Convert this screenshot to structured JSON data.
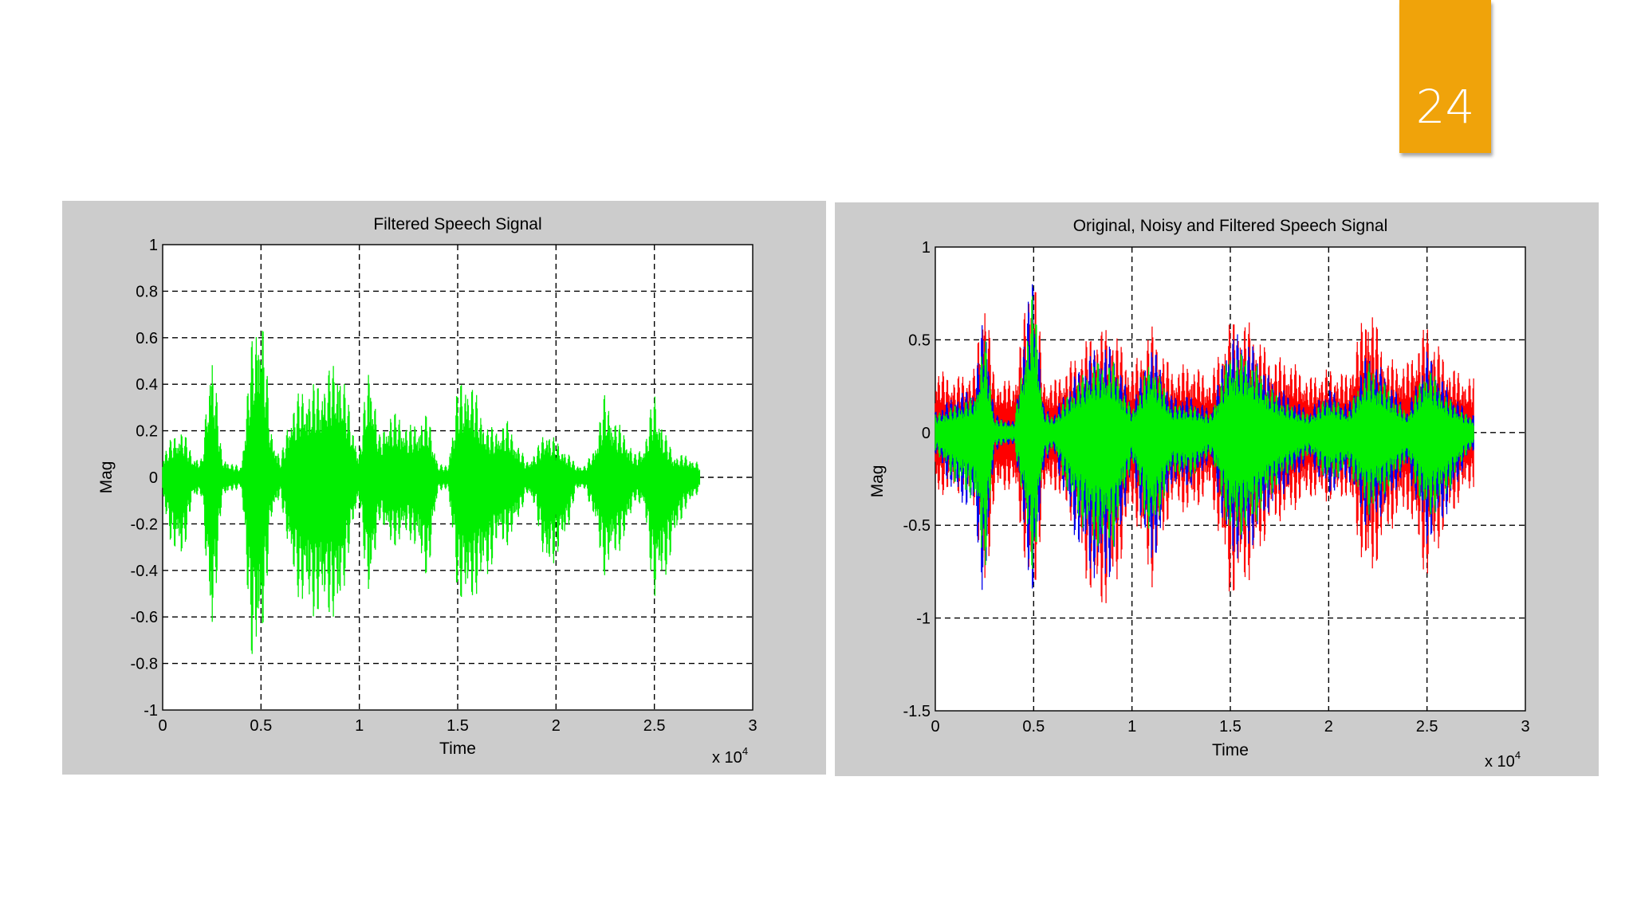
{
  "slide": {
    "number": "24",
    "accent": "#f0a30a"
  },
  "chart_data": [
    {
      "type": "line",
      "title": "Filtered Speech Signal",
      "xlabel": "Time",
      "ylabel": "Mag",
      "x_exponent_base": "x 10",
      "x_exponent_power": "4",
      "xlim": [
        0,
        30000
      ],
      "ylim": [
        -1,
        1
      ],
      "xticks": [
        0,
        5000,
        10000,
        15000,
        20000,
        25000,
        30000
      ],
      "xtick_labels": [
        "0",
        "0.5",
        "1",
        "1.5",
        "2",
        "2.5",
        "3"
      ],
      "yticks": [
        -1,
        -0.8,
        -0.6,
        -0.4,
        -0.2,
        0,
        0.2,
        0.4,
        0.6,
        0.8,
        1
      ],
      "ytick_labels": [
        "-1",
        "-0.8",
        "-0.6",
        "-0.4",
        "-0.2",
        "0",
        "0.2",
        "0.4",
        "0.6",
        "0.8",
        "1"
      ],
      "grid": true,
      "series": [
        {
          "color": "#00ee00",
          "x": [
            0,
            500,
            1000,
            1500,
            2000,
            2500,
            3000,
            3500,
            4000,
            4500,
            5000,
            5500,
            6000,
            6500,
            7000,
            7500,
            8000,
            8500,
            9000,
            9500,
            10000,
            10500,
            11000,
            11500,
            12000,
            12500,
            13000,
            13500,
            14000,
            14500,
            15000,
            15500,
            16000,
            16500,
            17000,
            17500,
            18000,
            18500,
            19000,
            19500,
            20000,
            20500,
            21000,
            21500,
            22000,
            22500,
            23000,
            23500,
            24000,
            24500,
            25000,
            25500,
            26000,
            26500,
            27000,
            27300
          ],
          "upper": [
            0.1,
            0.18,
            0.22,
            0.1,
            0.08,
            0.62,
            0.1,
            0.06,
            0.05,
            0.58,
            0.82,
            0.22,
            0.08,
            0.3,
            0.38,
            0.4,
            0.42,
            0.48,
            0.52,
            0.3,
            0.1,
            0.55,
            0.18,
            0.28,
            0.28,
            0.22,
            0.25,
            0.28,
            0.06,
            0.05,
            0.4,
            0.45,
            0.35,
            0.22,
            0.22,
            0.25,
            0.16,
            0.07,
            0.12,
            0.22,
            0.16,
            0.12,
            0.06,
            0.05,
            0.15,
            0.38,
            0.25,
            0.2,
            0.1,
            0.15,
            0.38,
            0.2,
            0.1,
            0.1,
            0.08,
            0.06
          ],
          "lower": [
            -0.1,
            -0.32,
            -0.38,
            -0.1,
            -0.08,
            -0.8,
            -0.1,
            -0.06,
            -0.05,
            -0.78,
            -0.82,
            -0.2,
            -0.08,
            -0.4,
            -0.55,
            -0.6,
            -0.62,
            -0.6,
            -0.65,
            -0.3,
            -0.1,
            -0.6,
            -0.18,
            -0.3,
            -0.3,
            -0.25,
            -0.35,
            -0.45,
            -0.06,
            -0.05,
            -0.52,
            -0.58,
            -0.5,
            -0.45,
            -0.3,
            -0.3,
            -0.22,
            -0.07,
            -0.15,
            -0.45,
            -0.35,
            -0.28,
            -0.06,
            -0.05,
            -0.22,
            -0.45,
            -0.35,
            -0.28,
            -0.1,
            -0.15,
            -0.55,
            -0.45,
            -0.3,
            -0.15,
            -0.1,
            -0.06
          ]
        }
      ]
    },
    {
      "type": "line",
      "title": "Original, Noisy and Filtered Speech Signal",
      "xlabel": "Time",
      "ylabel": "Mag",
      "x_exponent_base": "x 10",
      "x_exponent_power": "4",
      "xlim": [
        0,
        30000
      ],
      "ylim": [
        -1.5,
        1
      ],
      "xticks": [
        0,
        5000,
        10000,
        15000,
        20000,
        25000,
        30000
      ],
      "xtick_labels": [
        "0",
        "0.5",
        "1",
        "1.5",
        "2",
        "2.5",
        "3"
      ],
      "yticks": [
        -1.5,
        -1,
        -0.5,
        0,
        0.5,
        1
      ],
      "ytick_labels": [
        "-1.5",
        "-1",
        "-0.5",
        "0",
        "0.5",
        "1"
      ],
      "grid": true,
      "series": [
        {
          "color": "#ff0000",
          "x": [
            0,
            1000,
            2000,
            2500,
            3000,
            4000,
            5000,
            5500,
            6000,
            7000,
            8000,
            9000,
            10000,
            11000,
            12000,
            13000,
            14000,
            15000,
            16000,
            17000,
            18000,
            19000,
            20000,
            21000,
            22000,
            23000,
            24000,
            25000,
            26000,
            27000,
            27400
          ],
          "upper": [
            0.35,
            0.3,
            0.35,
            0.82,
            0.3,
            0.28,
            0.98,
            0.3,
            0.28,
            0.4,
            0.55,
            0.58,
            0.35,
            0.58,
            0.35,
            0.38,
            0.3,
            0.62,
            0.6,
            0.42,
            0.4,
            0.3,
            0.35,
            0.32,
            0.74,
            0.4,
            0.38,
            0.6,
            0.38,
            0.3,
            0.3
          ],
          "lower": [
            -0.35,
            -0.32,
            -0.4,
            -1.0,
            -0.35,
            -0.3,
            -1.02,
            -0.35,
            -0.3,
            -0.5,
            -0.95,
            -0.95,
            -0.4,
            -0.85,
            -0.4,
            -0.45,
            -0.32,
            -0.92,
            -0.8,
            -0.52,
            -0.45,
            -0.35,
            -0.38,
            -0.35,
            -0.85,
            -0.55,
            -0.42,
            -0.82,
            -0.5,
            -0.32,
            -0.3
          ]
        },
        {
          "color": "#0000ee",
          "x": [
            0,
            1000,
            2000,
            2500,
            3000,
            4000,
            5000,
            5500,
            6000,
            7000,
            8000,
            9000,
            10000,
            11000,
            12000,
            13000,
            14000,
            15000,
            16000,
            17000,
            18000,
            19000,
            20000,
            21000,
            22000,
            23000,
            24000,
            25000,
            26000,
            27000,
            27400
          ],
          "upper": [
            0.12,
            0.2,
            0.25,
            0.7,
            0.1,
            0.06,
            0.95,
            0.15,
            0.1,
            0.3,
            0.45,
            0.48,
            0.15,
            0.5,
            0.2,
            0.2,
            0.12,
            0.55,
            0.5,
            0.3,
            0.2,
            0.12,
            0.25,
            0.15,
            0.45,
            0.3,
            0.12,
            0.45,
            0.25,
            0.12,
            0.1
          ],
          "lower": [
            -0.12,
            -0.35,
            -0.45,
            -1.0,
            -0.1,
            -0.06,
            -1.0,
            -0.2,
            -0.1,
            -0.55,
            -0.8,
            -0.8,
            -0.2,
            -0.78,
            -0.28,
            -0.3,
            -0.15,
            -0.7,
            -0.65,
            -0.42,
            -0.3,
            -0.15,
            -0.35,
            -0.25,
            -0.55,
            -0.4,
            -0.2,
            -0.62,
            -0.45,
            -0.15,
            -0.1
          ]
        },
        {
          "color": "#00ee00",
          "x": [
            0,
            1000,
            2000,
            2500,
            3000,
            4000,
            5000,
            5500,
            6000,
            7000,
            8000,
            9000,
            10000,
            11000,
            12000,
            13000,
            14000,
            15000,
            16000,
            17000,
            18000,
            19000,
            20000,
            21000,
            22000,
            23000,
            24000,
            25000,
            26000,
            27000,
            27400
          ],
          "upper": [
            0.1,
            0.15,
            0.2,
            0.55,
            0.08,
            0.05,
            0.82,
            0.12,
            0.08,
            0.25,
            0.38,
            0.4,
            0.12,
            0.42,
            0.15,
            0.15,
            0.1,
            0.45,
            0.42,
            0.25,
            0.15,
            0.1,
            0.2,
            0.12,
            0.38,
            0.25,
            0.1,
            0.38,
            0.2,
            0.1,
            0.08
          ],
          "lower": [
            -0.1,
            -0.28,
            -0.38,
            -0.8,
            -0.08,
            -0.05,
            -0.82,
            -0.15,
            -0.08,
            -0.42,
            -0.62,
            -0.65,
            -0.15,
            -0.62,
            -0.22,
            -0.25,
            -0.12,
            -0.58,
            -0.55,
            -0.35,
            -0.22,
            -0.12,
            -0.28,
            -0.2,
            -0.45,
            -0.32,
            -0.15,
            -0.5,
            -0.35,
            -0.12,
            -0.08
          ]
        }
      ]
    }
  ]
}
